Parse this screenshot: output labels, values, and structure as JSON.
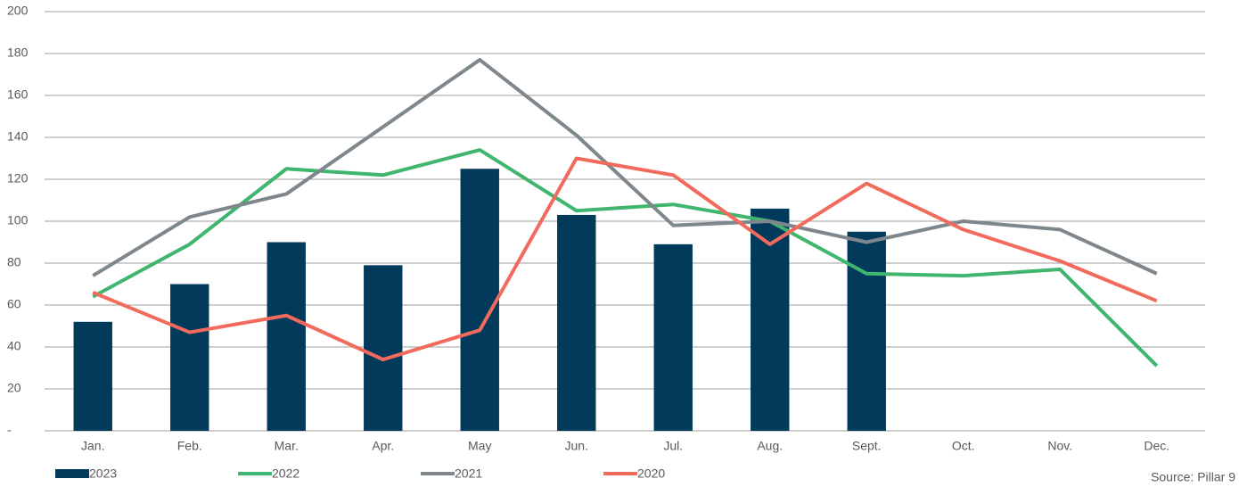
{
  "chart_data": {
    "type": "bar",
    "categories": [
      "Jan.",
      "Feb.",
      "Mar.",
      "Apr.",
      "May",
      "Jun.",
      "Jul.",
      "Aug.",
      "Sept.",
      "Oct.",
      "Nov.",
      "Dec."
    ],
    "series": [
      {
        "name": "2023",
        "type": "bar",
        "color": "#023a5c",
        "values": [
          52,
          70,
          90,
          79,
          125,
          103,
          89,
          106,
          95,
          null,
          null,
          null
        ]
      },
      {
        "name": "2022",
        "type": "line",
        "color": "#3fb56e",
        "values": [
          64,
          89,
          125,
          122,
          134,
          105,
          108,
          100,
          75,
          74,
          77,
          31
        ]
      },
      {
        "name": "2021",
        "type": "line",
        "color": "#7d878c",
        "values": [
          74,
          102,
          113,
          145,
          177,
          141,
          98,
          100,
          90,
          100,
          96,
          75
        ]
      },
      {
        "name": "2020",
        "type": "line",
        "color": "#f26a5c",
        "values": [
          66,
          47,
          55,
          34,
          48,
          130,
          122,
          89,
          118,
          96,
          81,
          62
        ]
      }
    ],
    "ylim": [
      0,
      200
    ],
    "yticks": [
      {
        "value": 0,
        "label": "-"
      },
      20,
      40,
      60,
      80,
      100,
      120,
      140,
      160,
      180,
      200
    ],
    "grid": true,
    "source": "Source: Pillar 9"
  }
}
